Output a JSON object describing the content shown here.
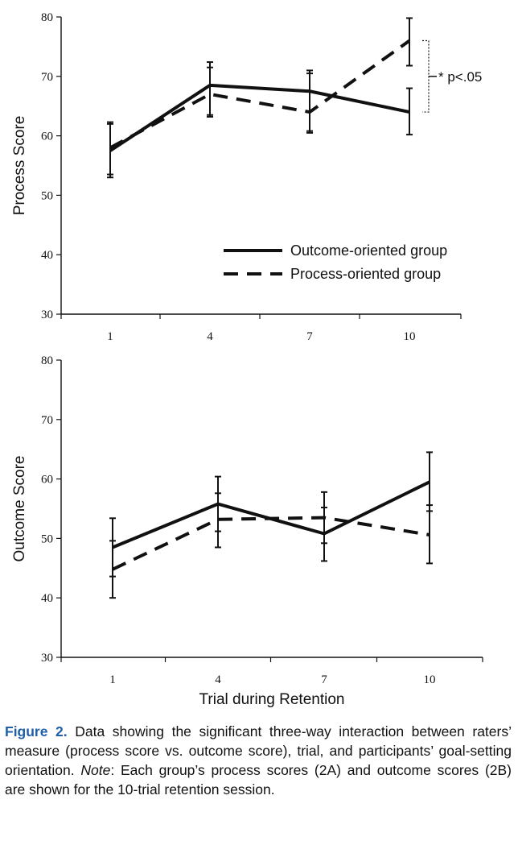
{
  "chart_data": [
    {
      "type": "line",
      "panel": "2A",
      "ylabel": "Process Score",
      "xlabel": "",
      "x": [
        1,
        4,
        7,
        10
      ],
      "x_tick_labels": [
        "1",
        "4",
        "7",
        "10"
      ],
      "ylim": [
        30,
        80
      ],
      "yticks": [
        30,
        40,
        50,
        60,
        70,
        80
      ],
      "series": [
        {
          "name": "Outcome-oriented group",
          "style": "solid",
          "values": [
            57.5,
            68.5,
            67.5,
            64.0
          ],
          "err_low": [
            53.0,
            63.5,
            60.8,
            60.2
          ],
          "err_high": [
            62.3,
            72.4,
            71.0,
            68.0
          ]
        },
        {
          "name": "Process-oriented group",
          "style": "dashed",
          "values": [
            58.0,
            67.0,
            64.0,
            76.0
          ],
          "err_low": [
            53.5,
            63.2,
            60.5,
            71.8
          ],
          "err_high": [
            62.0,
            71.5,
            70.5,
            79.8
          ]
        }
      ],
      "legend": {
        "placement": "lower-right"
      },
      "annotation": {
        "text": "* p<.05",
        "x": 10
      }
    },
    {
      "type": "line",
      "panel": "2B",
      "ylabel": "Outcome Score",
      "xlabel": "Trial during Retention",
      "x": [
        1,
        4,
        7,
        10
      ],
      "x_tick_labels": [
        "1",
        "4",
        "7",
        "10"
      ],
      "ylim": [
        30,
        80
      ],
      "yticks": [
        30,
        40,
        50,
        60,
        70,
        80
      ],
      "series": [
        {
          "name": "Outcome-oriented group",
          "style": "solid",
          "values": [
            48.5,
            55.8,
            50.8,
            59.5
          ],
          "err_low": [
            43.6,
            51.2,
            46.2,
            54.6
          ],
          "err_high": [
            53.4,
            60.4,
            55.2,
            64.5
          ]
        },
        {
          "name": "Process-oriented group",
          "style": "dashed",
          "values": [
            44.8,
            53.2,
            53.5,
            50.6
          ],
          "err_low": [
            40.0,
            48.5,
            49.2,
            45.8
          ],
          "err_high": [
            49.6,
            57.6,
            57.8,
            55.6
          ]
        }
      ]
    }
  ],
  "caption": {
    "label": "Figure 2.",
    "text_1": " Data showing the significant three-way interaction between raters’ measure (process score vs. outcome score), trial, and participants’ goal-setting orientation. ",
    "note_label": "Note",
    "text_2": ": Each group’s process scores (2A) and outcome scores (2B) are shown for the 10-trial retention session."
  }
}
